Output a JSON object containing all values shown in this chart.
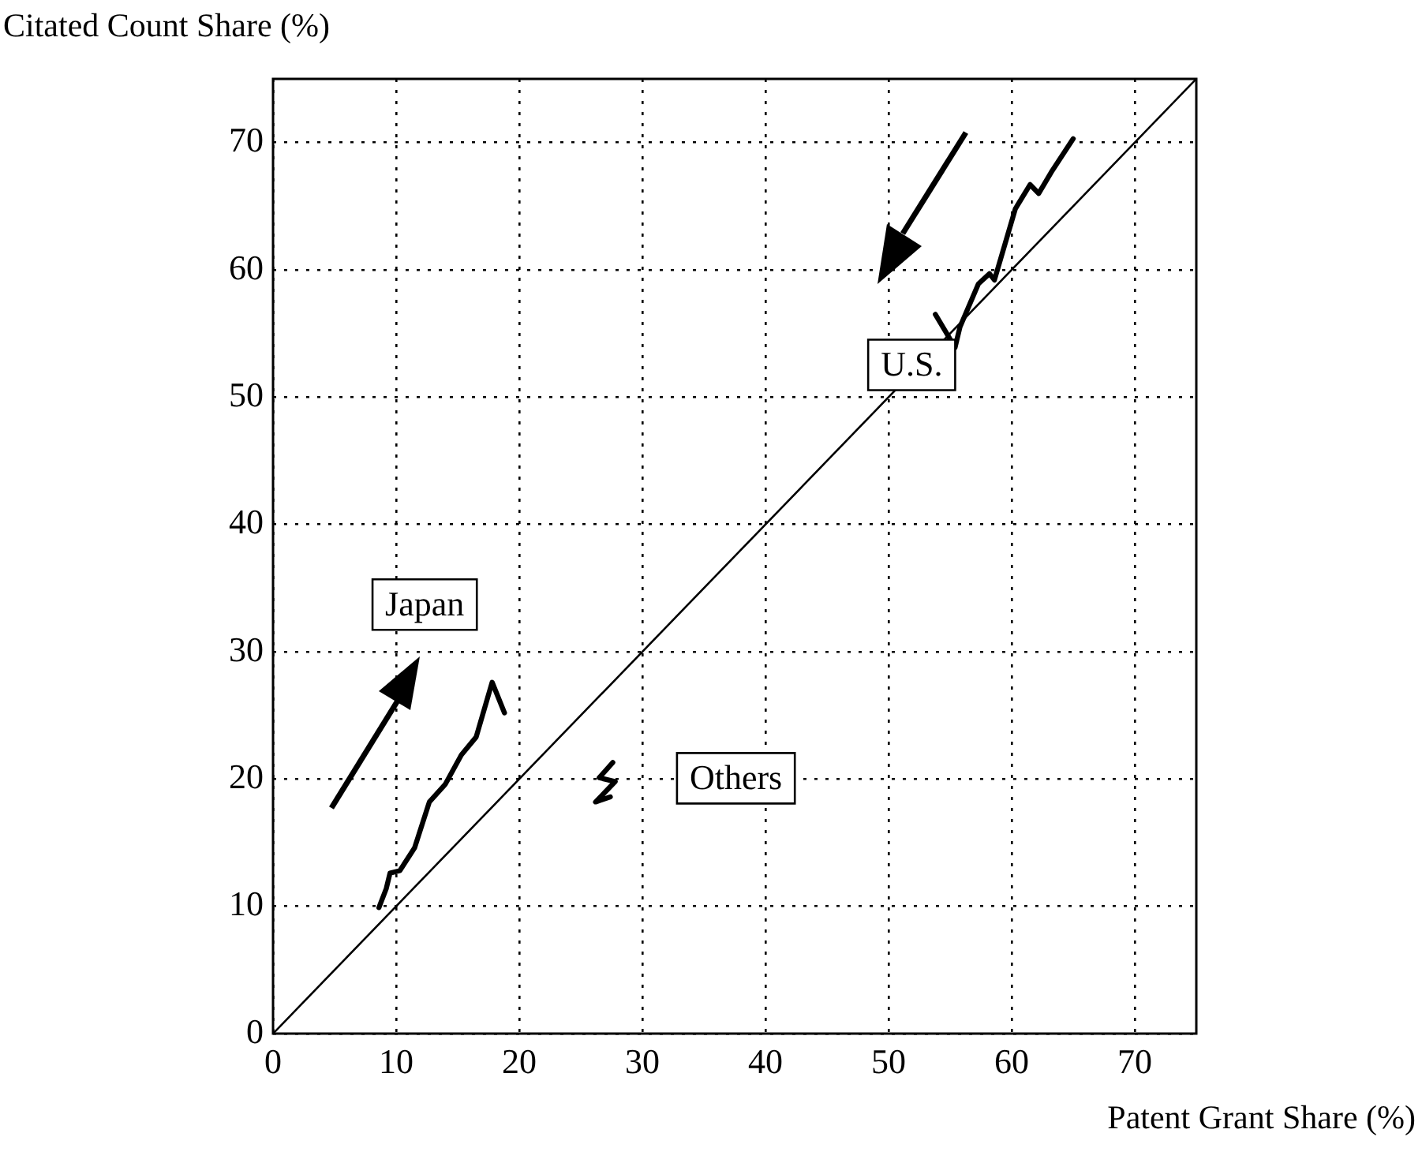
{
  "chart_data": {
    "type": "line",
    "xlabel": "Patent Grant Share (%)",
    "ylabel": "Citated Count Share (%)",
    "xlim": [
      0,
      75
    ],
    "ylim": [
      0,
      75
    ],
    "xticks": [
      0,
      10,
      20,
      30,
      40,
      50,
      60,
      70
    ],
    "yticks": [
      0,
      10,
      20,
      30,
      40,
      50,
      60,
      70
    ],
    "grid": true,
    "marker": "none",
    "series": [
      {
        "name": "Japan",
        "color": "#000000",
        "x": [
          8.6,
          9.2,
          9.5,
          10.3,
          11.5,
          12.7,
          14.0,
          15.3,
          16.5,
          17.8,
          18.8
        ],
        "values": [
          9.9,
          11.4,
          12.6,
          12.8,
          14.6,
          18.2,
          19.6,
          21.9,
          23.3,
          27.6,
          25.2
        ]
      },
      {
        "name": "U.S.",
        "color": "#000000",
        "x": [
          53.8,
          55.4,
          55.8,
          57.3,
          58.2,
          58.6,
          60.3,
          61.5,
          62.2,
          63.3,
          65.0
        ],
        "values": [
          56.5,
          53.9,
          55.5,
          58.9,
          59.7,
          59.2,
          64.8,
          66.7,
          66.0,
          67.8,
          70.3
        ]
      },
      {
        "name": "Others",
        "color": "#000000",
        "x": [
          27.6,
          26.5,
          27.8,
          26.2,
          27.4
        ],
        "values": [
          21.3,
          20.1,
          19.8,
          18.2,
          18.6
        ]
      },
      {
        "color": "#000000",
        "x": [
          0,
          75
        ],
        "values": [
          0,
          75
        ]
      }
    ]
  }
}
